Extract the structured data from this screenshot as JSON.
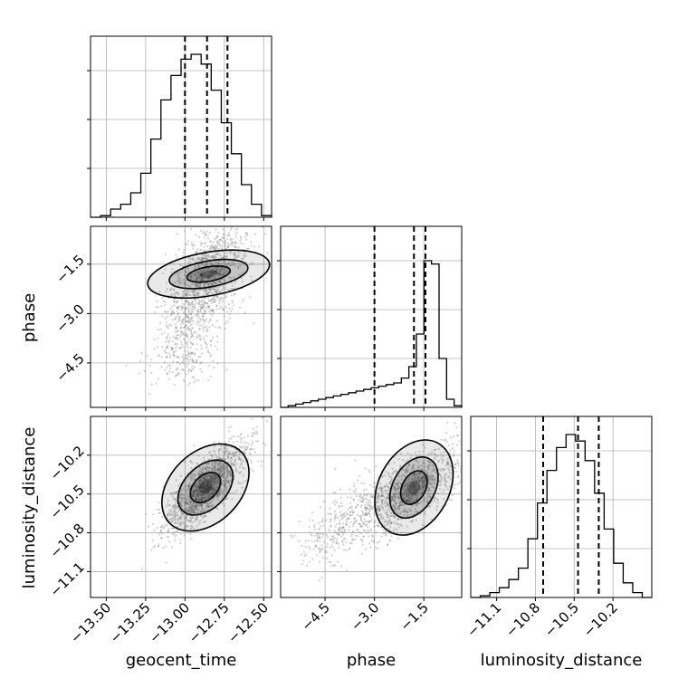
{
  "chart_data": {
    "type": "corner",
    "parameters": [
      "geocent_time",
      "phase",
      "luminosity_distance"
    ],
    "grid": true,
    "quantiles_note": "dashed lines at 16/50/84 percentiles",
    "ranges": {
      "geocent_time": [
        -13.6,
        -12.45
      ],
      "phase": [
        -5.85,
        -0.35
      ],
      "luminosity_distance": [
        -11.3,
        -9.9
      ]
    },
    "ticks": {
      "geocent_time": [
        -13.5,
        -13.25,
        -13.0,
        -12.75,
        -12.5
      ],
      "phase": [
        -4.5,
        -3.0,
        -1.5
      ],
      "luminosity_distance": [
        -11.1,
        -10.8,
        -10.5,
        -10.2
      ]
    },
    "tick_labels": {
      "geocent_time": [
        "−13.50",
        "−13.25",
        "−13.00",
        "−12.75",
        "−12.50"
      ],
      "phase": [
        "−4.5",
        "−3.0",
        "−1.5"
      ],
      "luminosity_distance": [
        "−11.1",
        "−10.8",
        "−10.5",
        "−10.2"
      ]
    },
    "quantiles": {
      "geocent_time": [
        -13.0,
        -12.86,
        -12.73
      ],
      "phase": [
        -3.0,
        -1.8,
        -1.45
      ],
      "luminosity_distance": [
        -10.74,
        -10.47,
        -10.31
      ]
    },
    "marginals": {
      "geocent_time": [
        0.0,
        0.01,
        0.05,
        0.08,
        0.15,
        0.27,
        0.48,
        0.72,
        0.87,
        0.97,
        1.0,
        0.94,
        0.78,
        0.58,
        0.39,
        0.2,
        0.08,
        0.01
      ],
      "phase": [
        0.0,
        0.01,
        0.02,
        0.03,
        0.04,
        0.05,
        0.06,
        0.07,
        0.08,
        0.09,
        0.1,
        0.11,
        0.12,
        0.13,
        0.14,
        0.15,
        0.18,
        0.25,
        0.45,
        0.9,
        0.88,
        0.3,
        0.05,
        0.01
      ],
      "luminosity_distance": [
        0.0,
        0.01,
        0.03,
        0.06,
        0.11,
        0.18,
        0.36,
        0.58,
        0.78,
        0.92,
        1.0,
        0.96,
        0.84,
        0.64,
        0.42,
        0.21,
        0.09,
        0.03,
        0.0
      ]
    },
    "pair_modes": {
      "phase_vs_geocent_time": {
        "x": -12.85,
        "y": -1.8
      },
      "luminosity_distance_vs_geocent_time": {
        "x": -12.87,
        "y": -10.45
      },
      "luminosity_distance_vs_phase": {
        "x": -1.8,
        "y": -10.45
      }
    },
    "xlabels": [
      "geocent_time",
      "phase",
      "luminosity_distance"
    ],
    "ylabels": [
      "phase",
      "luminosity_distance"
    ]
  },
  "colors": {
    "line": "#000000",
    "grid": "#b0b0b0",
    "scatter": "#7f7f7f"
  }
}
